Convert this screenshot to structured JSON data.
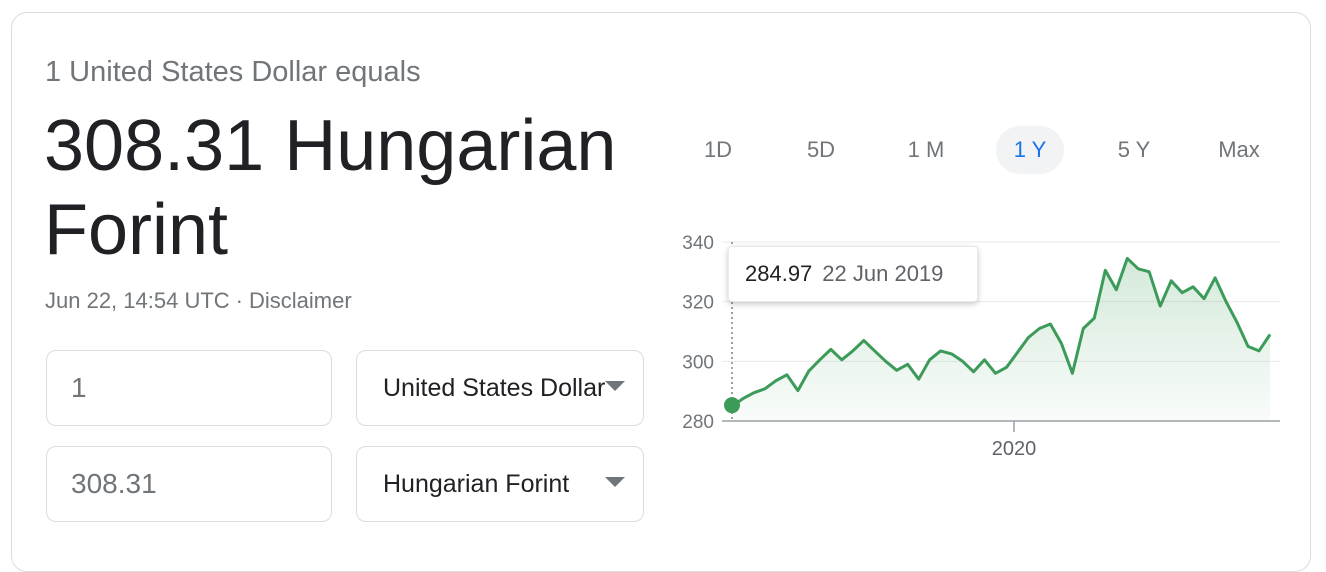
{
  "header": {
    "equals_label": "1 United States Dollar equals",
    "result": "308.31 Hungarian Forint",
    "timestamp": "Jun 22, 14:54 UTC",
    "separator": "·",
    "disclaimer": "Disclaimer"
  },
  "converter": {
    "from_amount": "1",
    "to_amount": "308.31",
    "from_currency": "United States Dollar",
    "to_currency": "Hungarian Forint"
  },
  "ranges": [
    {
      "label": "1D",
      "active": false
    },
    {
      "label": "5D",
      "active": false
    },
    {
      "label": "1 M",
      "active": false
    },
    {
      "label": "1 Y",
      "active": true
    },
    {
      "label": "5 Y",
      "active": false
    },
    {
      "label": "Max",
      "active": false
    }
  ],
  "tooltip": {
    "value": "284.97",
    "date": "22 Jun 2019"
  },
  "colors": {
    "line": "#3d9b59",
    "fill": "#e6f4ea",
    "active_range": "#1a73e8"
  },
  "chart_data": {
    "type": "area",
    "x_range": [
      "22 Jun 2019",
      "22 Jun 2020"
    ],
    "x_tick_labels": [
      "2020"
    ],
    "y_ticks": [
      280,
      300,
      320,
      340
    ],
    "ylim": [
      280,
      340
    ],
    "grid": true,
    "series": [
      {
        "values": [
          284.97,
          287.5,
          289.5,
          290.8,
          293.5,
          295.5,
          290.2,
          296.8,
          300.5,
          304,
          300.5,
          303.5,
          307,
          303.5,
          300,
          297,
          299,
          294,
          300.5,
          303.5,
          302.5,
          300,
          296.5,
          300.5,
          296,
          298,
          303,
          308,
          311,
          312.5,
          306,
          296,
          311,
          314.5,
          330.5,
          324,
          334.5,
          331,
          330,
          318.5,
          327,
          323,
          325,
          321,
          328,
          320,
          313,
          305,
          303.5,
          309
        ]
      }
    ],
    "highlight_point": {
      "date": "22 Jun 2019",
      "value": 284.97
    }
  }
}
